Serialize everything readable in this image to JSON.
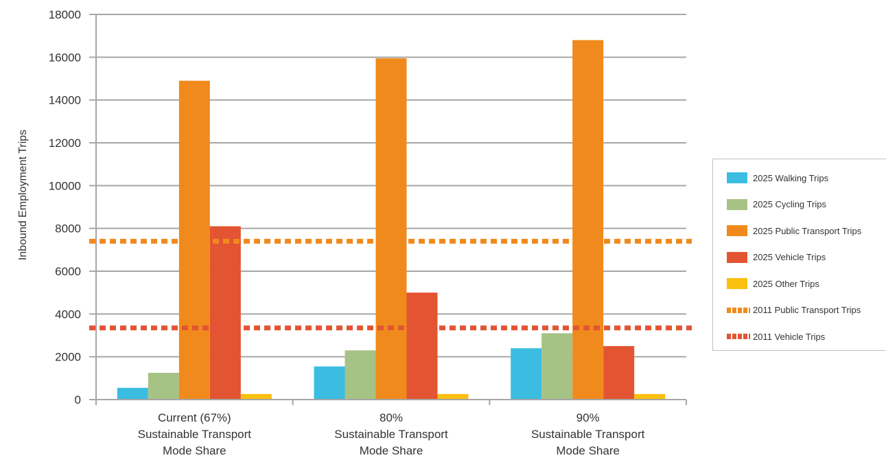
{
  "chart_data": {
    "type": "bar",
    "title": "",
    "xlabel": "",
    "ylabel": "Inbound Employment Trips",
    "ylim": [
      0,
      18000
    ],
    "yticks": [
      0,
      2000,
      4000,
      6000,
      8000,
      10000,
      12000,
      14000,
      16000,
      18000
    ],
    "grid": true,
    "legend_position": "right",
    "categories": [
      [
        "Current (67%)",
        "Sustainable Transport",
        "Mode Share"
      ],
      [
        "80%",
        "Sustainable Transport",
        "Mode Share"
      ],
      [
        "90%",
        "Sustainable Transport",
        "Mode Share"
      ]
    ],
    "series": [
      {
        "name": "2025 Walking Trips",
        "color": "#3bbde2",
        "values": [
          550,
          1550,
          2400
        ]
      },
      {
        "name": "2025 Cycling Trips",
        "color": "#a6c285",
        "values": [
          1250,
          2300,
          3100
        ]
      },
      {
        "name": "2025 Public Transport Trips",
        "color": "#f08a1c",
        "values": [
          14900,
          15950,
          16800
        ]
      },
      {
        "name": "2025 Vehicle Trips",
        "color": "#e35432",
        "values": [
          8100,
          5000,
          2500
        ]
      },
      {
        "name": "2025 Other Trips",
        "color": "#fbc00e",
        "values": [
          260,
          260,
          260
        ]
      }
    ],
    "reference_lines": [
      {
        "name": "2011 Public Transport Trips",
        "color": "#f08a1c",
        "value": 7400,
        "style": "dotted"
      },
      {
        "name": "2011 Vehicle Trips",
        "color": "#e35432",
        "value": 3350,
        "style": "dotted"
      }
    ]
  }
}
